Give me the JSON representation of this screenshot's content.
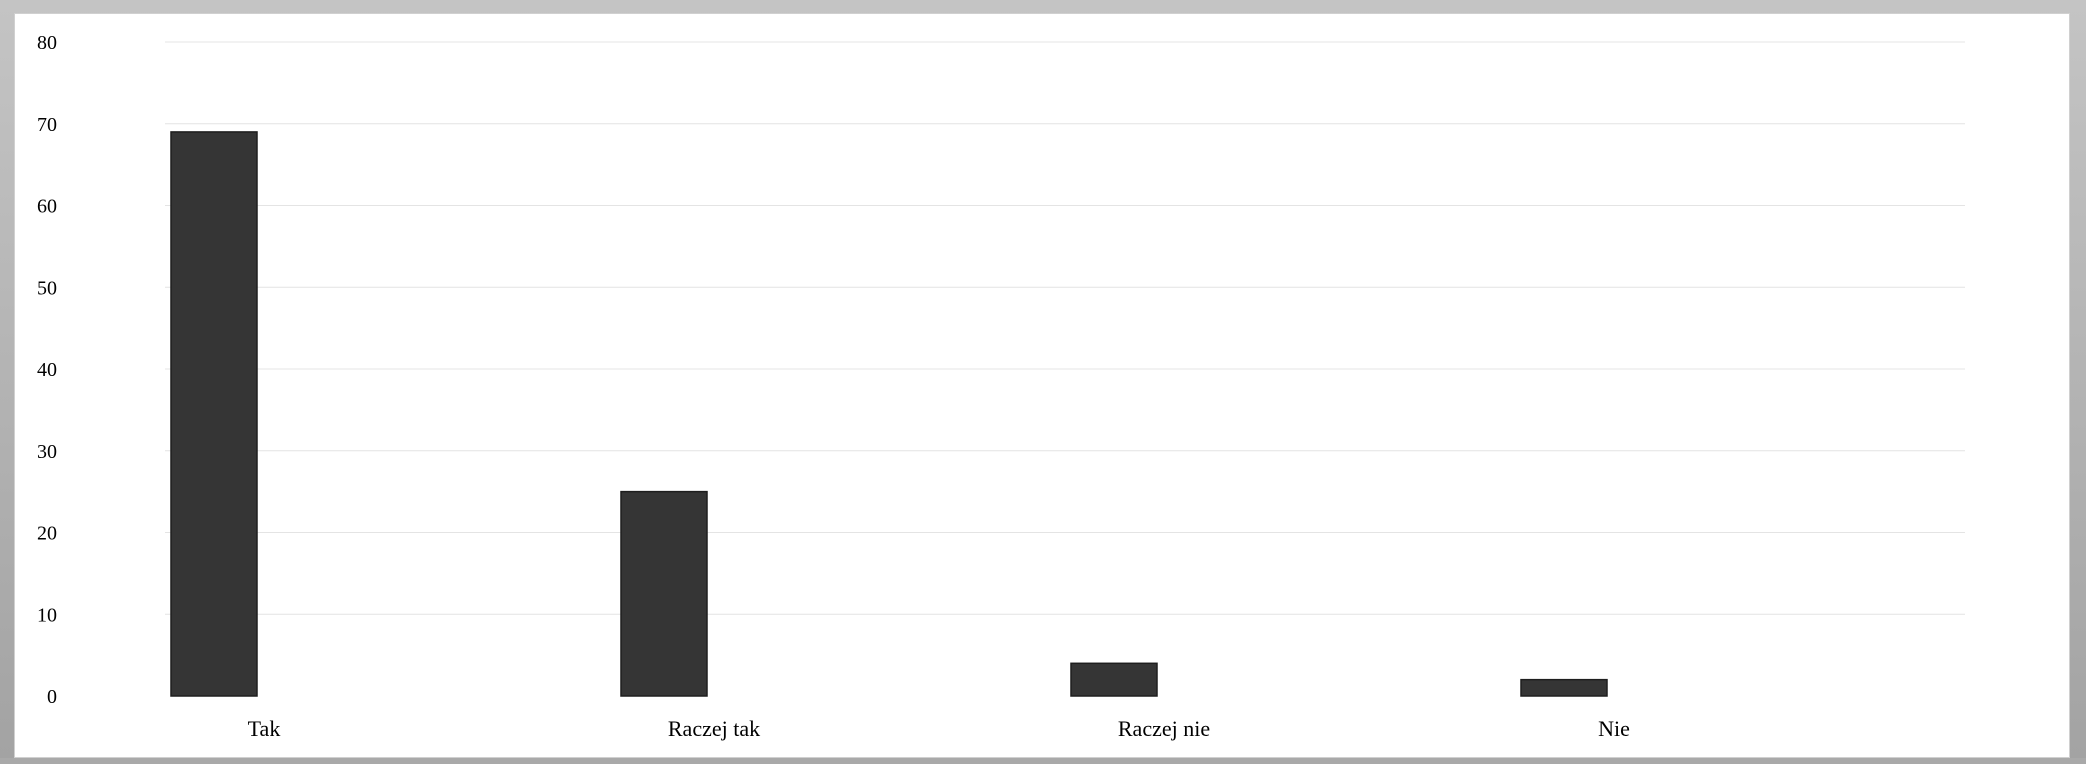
{
  "chart_data": {
    "type": "bar",
    "title": "",
    "xlabel": "",
    "ylabel": "",
    "categories": [
      "Tak",
      "Raczej tak",
      "Raczej nie",
      "Nie"
    ],
    "values": [
      69,
      25,
      4,
      2
    ],
    "ylim": [
      0,
      80
    ],
    "yticks": [
      0,
      10,
      20,
      30,
      40,
      50,
      60,
      70,
      80
    ],
    "grid": true,
    "legend": "none"
  },
  "colors": {
    "bar": "#353535",
    "bar_edge": "#1e1e1e",
    "grid": "#e4e4e4",
    "background": "#ffffff",
    "frame": "#b0b0b0"
  }
}
